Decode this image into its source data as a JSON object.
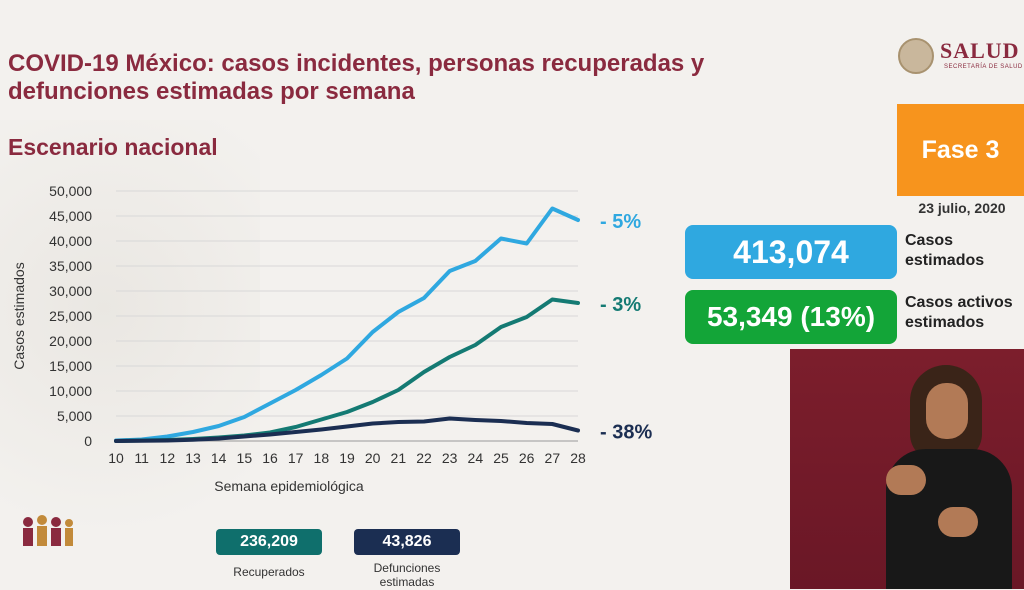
{
  "title": "COVID-19 México: casos incidentes, personas recuperadas y defunciones estimadas por semana",
  "subtitle": "Escenario nacional",
  "logo": {
    "word": "SALUD",
    "sub": "SECRETARÍA DE SALUD"
  },
  "phase": "Fase 3",
  "date": "23 julio, 2020",
  "stats": {
    "estimated_cases": {
      "value": "413,074",
      "label_line1": "Casos",
      "label_line2": "estimados",
      "color": "#2fa8e0"
    },
    "active_cases": {
      "value": "53,349 (13%)",
      "label_line1": "Casos activos",
      "label_line2": "estimados",
      "color": "#13a538"
    }
  },
  "summary": {
    "recovered": {
      "value": "236,209",
      "label": "Recuperados"
    },
    "deaths": {
      "value": "43,826",
      "label_line1": "Defunciones",
      "label_line2": "estimadas"
    }
  },
  "chart_data": {
    "type": "line",
    "title": "",
    "xlabel": "Semana epidemiológica",
    "ylabel": "Casos estimados",
    "x": [
      10,
      11,
      12,
      13,
      14,
      15,
      16,
      17,
      18,
      19,
      20,
      21,
      22,
      23,
      24,
      25,
      26,
      27,
      28
    ],
    "ylim": [
      0,
      50000
    ],
    "yticks": [
      0,
      5000,
      10000,
      15000,
      20000,
      25000,
      30000,
      35000,
      40000,
      45000,
      50000
    ],
    "ytick_labels": [
      "0",
      "5,000",
      "10,000",
      "15,000",
      "20,000",
      "25,000",
      "30,000",
      "35,000",
      "40,000",
      "45,000",
      "50,000"
    ],
    "grid": true,
    "series": [
      {
        "name": "",
        "color": "#2fa8e0",
        "end_label": "- 5%",
        "values": [
          100,
          300,
          900,
          1800,
          3000,
          4800,
          7500,
          10200,
          13200,
          16500,
          21800,
          25800,
          28600,
          34000,
          36000,
          40500,
          39500,
          46500,
          44200
        ]
      },
      {
        "name": "",
        "color": "#147a73",
        "end_label": "- 3%",
        "values": [
          0,
          100,
          200,
          400,
          700,
          1100,
          1700,
          2800,
          4300,
          5800,
          7800,
          10200,
          13800,
          16800,
          19200,
          22800,
          24800,
          28300,
          27600
        ]
      },
      {
        "name": "",
        "color": "#1b2e52",
        "end_label": "- 38%",
        "values": [
          0,
          50,
          100,
          250,
          500,
          900,
          1300,
          1800,
          2300,
          2900,
          3500,
          3800,
          3900,
          4500,
          4200,
          4000,
          3600,
          3400,
          2100
        ]
      }
    ]
  }
}
